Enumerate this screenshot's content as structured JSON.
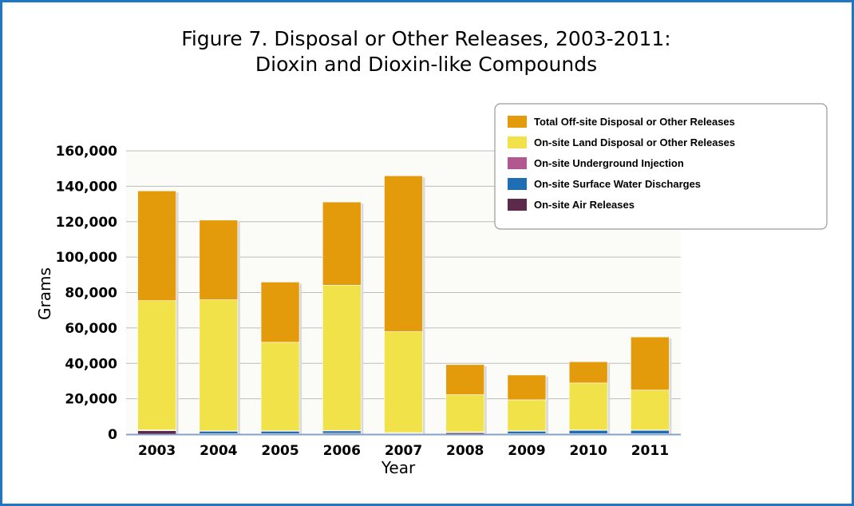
{
  "chart_data": {
    "type": "bar",
    "stacked": true,
    "title": "Figure 7. Disposal or Other Releases, 2003-2011:",
    "subtitle": "Dioxin and Dioxin-like Compounds",
    "xlabel": "Year",
    "ylabel": "Grams",
    "ylim": [
      0,
      160000
    ],
    "yticks": [
      0,
      20000,
      40000,
      60000,
      80000,
      100000,
      120000,
      140000,
      160000
    ],
    "ytick_labels": [
      "0",
      "20,000",
      "40,000",
      "60,000",
      "80,000",
      "100,000",
      "120,000",
      "140,000",
      "160,000"
    ],
    "grid": true,
    "legend_position": "top-right",
    "categories": [
      "2003",
      "2004",
      "2005",
      "2006",
      "2007",
      "2008",
      "2009",
      "2010",
      "2011"
    ],
    "series": [
      {
        "name": "On-site Air Releases",
        "color": "#5e2a4c",
        "values": [
          2000,
          300,
          300,
          500,
          400,
          800,
          300,
          300,
          300
        ]
      },
      {
        "name": "On-site Surface Water Discharges",
        "color": "#1f6eb3",
        "values": [
          300,
          1500,
          1500,
          1500,
          400,
          400,
          1500,
          2000,
          2000
        ]
      },
      {
        "name": "On-site Underground Injection",
        "color": "#b0588f",
        "values": [
          100,
          100,
          100,
          100,
          100,
          100,
          100,
          100,
          100
        ]
      },
      {
        "name": "On-site Land Disposal or Other Releases",
        "color": "#f1e24a",
        "values": [
          73000,
          74000,
          50000,
          82000,
          57000,
          21000,
          17500,
          26500,
          22500
        ]
      },
      {
        "name": "Total Off-site Disposal or Other Releases",
        "color": "#e39b0b",
        "values": [
          62000,
          45000,
          34000,
          47000,
          88000,
          17000,
          14000,
          12000,
          30000
        ]
      }
    ],
    "legend_order": [
      "Total Off-site Disposal or Other Releases",
      "On-site Land Disposal or Other Releases",
      "On-site Underground Injection",
      "On-site Surface Water Discharges",
      "On-site Air Releases"
    ]
  }
}
